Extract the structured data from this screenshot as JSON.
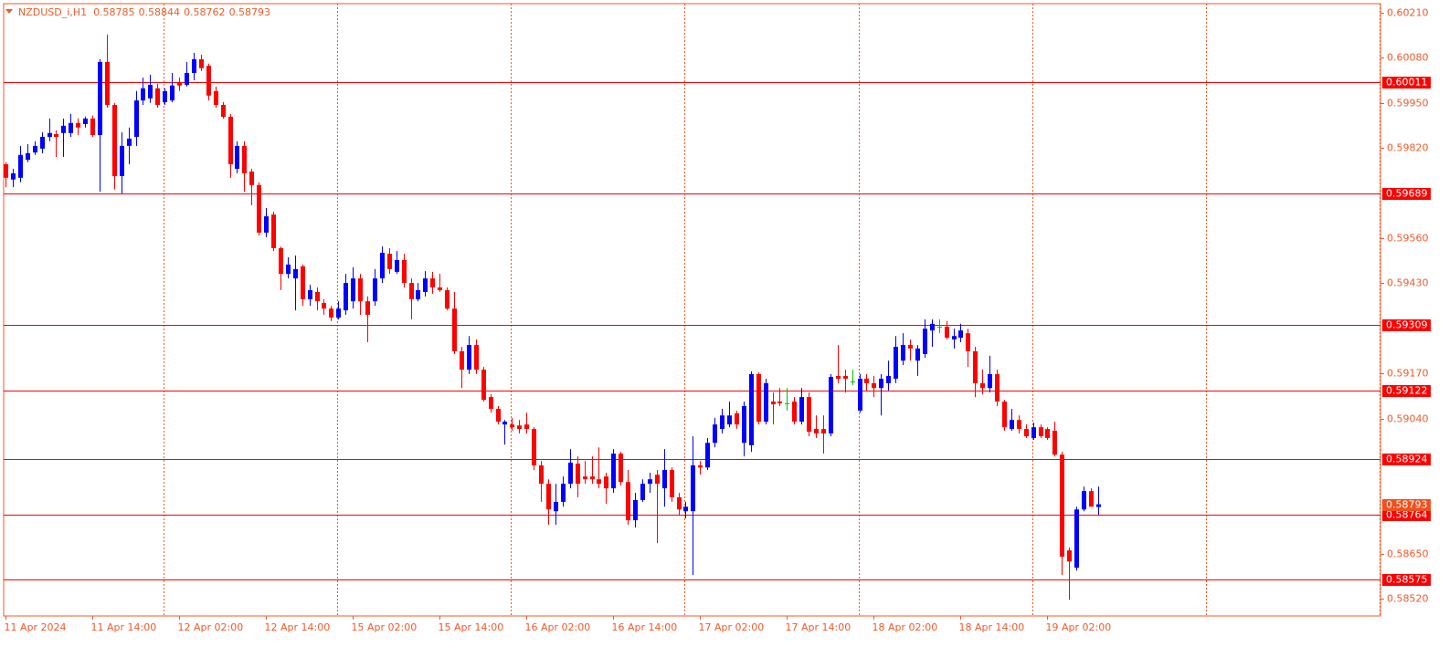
{
  "chart_data": {
    "type": "candlestick",
    "title": "NZDUSD_i,H1",
    "bull_color": "#0000ff",
    "bear_color": "#ff0000",
    "doji_color": "#00c000",
    "level_color": "#ff0000",
    "last_price_color": "#f0501e",
    "axis_color": "#f05a28",
    "separator_color": "#f05a28",
    "ylim": [
      0.58471,
      0.60236
    ],
    "yticks": [
      {
        "value": 0.6021,
        "label": "0.60210"
      },
      {
        "value": 0.6008,
        "label": "0.60080"
      },
      {
        "value": 0.5995,
        "label": "0.59950"
      },
      {
        "value": 0.5982,
        "label": "0.59820"
      },
      {
        "value": 0.5956,
        "label": "0.59560"
      },
      {
        "value": 0.5943,
        "label": "0.59430"
      },
      {
        "value": 0.5917,
        "label": "0.59170"
      },
      {
        "value": 0.5904,
        "label": "0.59040"
      },
      {
        "value": 0.5865,
        "label": "0.58650"
      },
      {
        "value": 0.5852,
        "label": "0.58520"
      }
    ],
    "levels": [
      0.60011,
      0.59689,
      0.59309,
      0.59122,
      0.58924,
      0.58764,
      0.58575
    ],
    "categories": [
      "11 Apr 2024",
      null,
      null,
      null,
      null,
      null,
      null,
      null,
      null,
      null,
      null,
      null,
      "11 Apr 14:00",
      null,
      null,
      null,
      null,
      null,
      null,
      null,
      null,
      null,
      null,
      null,
      "12 Apr 02:00",
      null,
      null,
      null,
      null,
      null,
      null,
      null,
      null,
      null,
      null,
      null,
      "12 Apr 14:00",
      null,
      null,
      null,
      null,
      null,
      null,
      null,
      null,
      null,
      null,
      null,
      "15 Apr 02:00",
      null,
      null,
      null,
      null,
      null,
      null,
      null,
      null,
      null,
      null,
      null,
      "15 Apr 14:00",
      null,
      null,
      null,
      null,
      null,
      null,
      null,
      null,
      null,
      null,
      null,
      "16 Apr 02:00",
      null,
      null,
      null,
      null,
      null,
      null,
      null,
      null,
      null,
      null,
      null,
      "16 Apr 14:00",
      null,
      null,
      null,
      null,
      null,
      null,
      null,
      null,
      null,
      null,
      null,
      "17 Apr 02:00",
      null,
      null,
      null,
      null,
      null,
      null,
      null,
      null,
      null,
      null,
      null,
      "17 Apr 14:00",
      null,
      null,
      null,
      null,
      null,
      null,
      null,
      null,
      null,
      null,
      null,
      "18 Apr 02:00",
      null,
      null,
      null,
      null,
      null,
      null,
      null,
      null,
      null,
      null,
      null,
      "18 Apr 14:00",
      null,
      null,
      null,
      null,
      null,
      null,
      null,
      null,
      null,
      null,
      null,
      "19 Apr 02:00",
      null,
      null,
      null,
      null,
      null,
      null,
      null
    ],
    "open": [
      0.59773,
      0.59729,
      0.59734,
      0.59786,
      0.59807,
      0.59818,
      0.59852,
      0.5986,
      0.59863,
      0.59863,
      0.59892,
      0.59889,
      0.59905,
      0.59857,
      0.60068,
      0.59944,
      0.59739,
      0.59826,
      0.59852,
      0.59957,
      0.59963,
      0.59992,
      0.59952,
      0.59957,
      0.6001,
      0.60002,
      0.60036,
      0.60076,
      0.60057,
      0.59984,
      0.59944,
      0.5991,
      0.5976,
      0.59826,
      0.59752,
      0.59713,
      0.59576,
      0.59628,
      0.59531,
      0.59457,
      0.59444,
      0.59479,
      0.59384,
      0.59405,
      0.59373,
      0.59357,
      0.59331,
      0.59352,
      0.59378,
      0.59444,
      0.59378,
      0.59378,
      0.59444,
      0.59515,
      0.59463,
      0.59497,
      0.59431,
      0.59384,
      0.59405,
      0.59444,
      0.59418,
      0.5941,
      0.59357,
      0.59234,
      0.59181,
      0.59252,
      0.59181,
      0.59102,
      0.59068,
      0.59023,
      0.59023,
      0.5902,
      0.59023,
      0.5901,
      0.58905,
      0.58852,
      0.58773,
      0.588,
      0.58852,
      0.5891,
      0.58873,
      0.58873,
      0.58865,
      0.58873,
      0.58839,
      0.58939,
      0.58857,
      0.58747,
      0.58805,
      0.58852,
      0.58878,
      0.58839,
      0.58892,
      0.58813,
      0.58773,
      0.58773,
      0.58905,
      0.58899,
      0.5897,
      0.5901,
      0.59023,
      0.59055,
      0.5897,
      0.58963,
      0.59168,
      0.59031,
      0.59089,
      0.59089,
      0.59084,
      0.59089,
      0.59031,
      0.59102,
      0.5901,
      0.5901,
      0.58997,
      0.59163,
      0.59163,
      0.59147,
      0.59063,
      0.59155,
      0.59142,
      0.59128,
      0.59142,
      0.59155,
      0.59207,
      0.59252,
      0.59207,
      0.59226,
      0.59294,
      0.59305,
      0.59305,
      0.59268,
      0.59273,
      0.59286,
      0.59234,
      0.59142,
      0.59128,
      0.59168,
      0.59089,
      0.5901,
      0.59036,
      0.5901,
      0.58984,
      0.59015,
      0.5901,
      0.59005,
      0.58936,
      0.5866,
      0.5861,
      0.58778,
      0.58831,
      0.58785
    ],
    "high": [
      0.59779,
      0.5976,
      0.59826,
      0.59831,
      0.59839,
      0.59865,
      0.59905,
      0.59871,
      0.59905,
      0.59918,
      0.59905,
      0.5991,
      0.59913,
      0.60076,
      0.60147,
      0.5995,
      0.59865,
      0.59879,
      0.59984,
      0.60023,
      0.60031,
      0.60005,
      0.59992,
      0.60036,
      0.60023,
      0.60068,
      0.60094,
      0.60089,
      0.60063,
      0.59997,
      0.59952,
      0.59918,
      0.59839,
      0.59839,
      0.5976,
      0.59721,
      0.59647,
      0.59636,
      0.59536,
      0.59505,
      0.5951,
      0.59484,
      0.59426,
      0.59418,
      0.59384,
      0.59365,
      0.59378,
      0.59457,
      0.59476,
      0.59457,
      0.59392,
      0.59471,
      0.59536,
      0.59531,
      0.59523,
      0.59515,
      0.59444,
      0.59431,
      0.59465,
      0.59463,
      0.59457,
      0.59418,
      0.59405,
      0.59247,
      0.59278,
      0.59268,
      0.59189,
      0.5911,
      0.59076,
      0.59036,
      0.59042,
      0.59036,
      0.59057,
      0.59015,
      0.58918,
      0.58865,
      0.58852,
      0.58873,
      0.58952,
      0.58931,
      0.58918,
      0.58931,
      0.58957,
      0.58884,
      0.58952,
      0.58944,
      0.58892,
      0.58826,
      0.58865,
      0.58884,
      0.58892,
      0.58952,
      0.58899,
      0.58826,
      0.588,
      0.58989,
      0.58918,
      0.58984,
      0.59042,
      0.59068,
      0.59089,
      0.59063,
      0.59089,
      0.59176,
      0.59173,
      0.59155,
      0.59115,
      0.59128,
      0.59128,
      0.59102,
      0.59128,
      0.59115,
      0.59049,
      0.59049,
      0.59168,
      0.59252,
      0.59181,
      0.59181,
      0.59168,
      0.59168,
      0.59163,
      0.59168,
      0.59207,
      0.59278,
      0.59286,
      0.59268,
      0.59252,
      0.59326,
      0.59326,
      0.59326,
      0.59321,
      0.59299,
      0.59313,
      0.59299,
      0.59247,
      0.59181,
      0.59221,
      0.59181,
      0.59094,
      0.59068,
      0.59049,
      0.59023,
      0.59028,
      0.59023,
      0.59015,
      0.59031,
      0.58944,
      0.58668,
      0.58786,
      0.58844,
      0.58839,
      0.58844
    ],
    "low": [
      0.59707,
      0.59707,
      0.59721,
      0.59779,
      0.598,
      0.59805,
      0.59839,
      0.59794,
      0.59794,
      0.59852,
      0.59857,
      0.59879,
      0.59852,
      0.59694,
      0.59936,
      0.597,
      0.59689,
      0.59773,
      0.59826,
      0.59944,
      0.5995,
      0.59936,
      0.59944,
      0.59952,
      0.59984,
      0.59997,
      0.60015,
      0.60042,
      0.59957,
      0.59936,
      0.59905,
      0.59734,
      0.59747,
      0.59694,
      0.59655,
      0.59568,
      0.59563,
      0.59523,
      0.5941,
      0.59444,
      0.59352,
      0.59365,
      0.59365,
      0.59352,
      0.59339,
      0.59321,
      0.59326,
      0.59339,
      0.59357,
      0.59339,
      0.5926,
      0.59365,
      0.59431,
      0.59457,
      0.59457,
      0.59418,
      0.59326,
      0.59378,
      0.59392,
      0.594,
      0.59405,
      0.59352,
      0.59226,
      0.59128,
      0.59168,
      0.59168,
      0.59089,
      0.59057,
      0.59023,
      0.58965,
      0.59005,
      0.58997,
      0.58997,
      0.58892,
      0.588,
      0.58734,
      0.58734,
      0.58786,
      0.58839,
      0.58813,
      0.58852,
      0.58852,
      0.58839,
      0.58794,
      0.58826,
      0.58847,
      0.58734,
      0.58726,
      0.588,
      0.58826,
      0.58681,
      0.58786,
      0.588,
      0.5876,
      0.58752,
      0.58589,
      0.58878,
      0.58892,
      0.58957,
      0.58997,
      0.59015,
      0.5901,
      0.58931,
      0.58944,
      0.59023,
      0.59023,
      0.59023,
      0.59076,
      0.59063,
      0.59023,
      0.59023,
      0.58989,
      0.58984,
      0.58939,
      0.58989,
      0.59142,
      0.59115,
      0.59136,
      0.59057,
      0.59121,
      0.59102,
      0.59049,
      0.59121,
      0.59142,
      0.59194,
      0.59207,
      0.59163,
      0.59215,
      0.59247,
      0.59286,
      0.59268,
      0.59242,
      0.5926,
      0.59189,
      0.59102,
      0.5911,
      0.59115,
      0.59076,
      0.59005,
      0.59005,
      0.58997,
      0.58984,
      0.58979,
      0.58984,
      0.58979,
      0.58931,
      0.58589,
      0.58518,
      0.58602,
      0.58773,
      0.58786,
      0.58762
    ],
    "close": [
      0.59734,
      0.59747,
      0.598,
      0.59805,
      0.59826,
      0.59852,
      0.59863,
      0.59852,
      0.59884,
      0.59892,
      0.59879,
      0.59905,
      0.59857,
      0.60068,
      0.59944,
      0.59739,
      0.59826,
      0.59847,
      0.59957,
      0.59992,
      0.60002,
      0.59944,
      0.59984,
      0.6,
      0.6,
      0.60036,
      0.60076,
      0.6005,
      0.59971,
      0.59944,
      0.5991,
      0.59773,
      0.59826,
      0.59747,
      0.59713,
      0.59576,
      0.59623,
      0.59531,
      0.59457,
      0.59484,
      0.59471,
      0.59384,
      0.5941,
      0.59378,
      0.59357,
      0.59331,
      0.59357,
      0.59431,
      0.59444,
      0.59378,
      0.59339,
      0.59444,
      0.59518,
      0.59471,
      0.59497,
      0.59431,
      0.59384,
      0.5941,
      0.59444,
      0.59418,
      0.5941,
      0.59357,
      0.59234,
      0.59181,
      0.59252,
      0.59181,
      0.59094,
      0.59068,
      0.59031,
      0.59031,
      0.59015,
      0.5901,
      0.5901,
      0.58905,
      0.58852,
      0.58778,
      0.588,
      0.58852,
      0.58913,
      0.58852,
      0.58865,
      0.58865,
      0.58852,
      0.58839,
      0.58939,
      0.58857,
      0.58747,
      0.58805,
      0.58852,
      0.58865,
      0.58852,
      0.58892,
      0.58813,
      0.58778,
      0.58786,
      0.58905,
      0.58899,
      0.5897,
      0.59023,
      0.59049,
      0.59049,
      0.59023,
      0.59076,
      0.59168,
      0.59031,
      0.59142,
      0.59081,
      0.59084,
      0.59084,
      0.59031,
      0.59102,
      0.59002,
      0.58997,
      0.58997,
      0.5916,
      0.59155,
      0.59155,
      0.59147,
      0.59155,
      0.59142,
      0.59128,
      0.59155,
      0.59163,
      0.59247,
      0.59252,
      0.59242,
      0.59242,
      0.59299,
      0.59313,
      0.59305,
      0.59273,
      0.59278,
      0.59294,
      0.59234,
      0.59142,
      0.59128,
      0.59168,
      0.59089,
      0.59015,
      0.59036,
      0.5901,
      0.58989,
      0.59015,
      0.58989,
      0.58984,
      0.58936,
      0.58642,
      0.58628,
      0.58778,
      0.58831,
      0.58786,
      0.58793
    ]
  }
}
